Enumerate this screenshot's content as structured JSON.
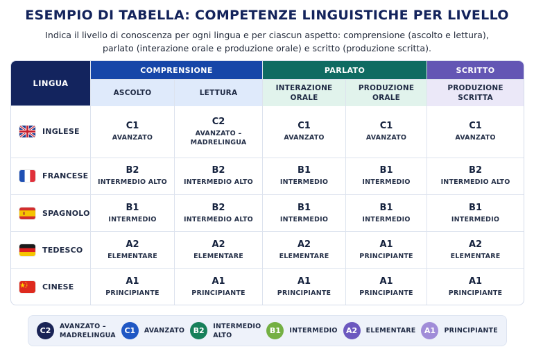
{
  "title": "ESEMPIO DI TABELLA: COMPETENZE LINGUISTICHE PER LIVELLO",
  "subtitle_line1": "Indica il livello di conoscenza per ogni lingua e per ciascun aspetto: comprensione (ascolto e lettura),",
  "subtitle_line2": "parlato (interazione orale e produzione orale) e scritto (produzione scritta).",
  "table": {
    "lingua_header": "LINGUA",
    "groups": {
      "comprensione": "COMPRENSIONE",
      "parlato": "PARLATO",
      "scritto": "SCRITTO"
    },
    "subheaders": {
      "ascolto": "ASCOLTO",
      "lettura": "LETTURA",
      "interazione_1": "INTERAZIONE",
      "interazione_2": "ORALE",
      "produzione_orale_1": "PRODUZIONE",
      "produzione_orale_2": "ORALE",
      "produzione_scritta_1": "PRODUZIONE",
      "produzione_scritta_2": "SCRITTA"
    },
    "rows": [
      {
        "language": "INGLESE",
        "flag": "uk-flag-icon",
        "cells": [
          {
            "level": "C1",
            "desc": "AVANZATO"
          },
          {
            "level": "C2",
            "desc": "AVANZATO –",
            "desc2": "MADRELINGUA"
          },
          {
            "level": "C1",
            "desc": "AVANZATO"
          },
          {
            "level": "C1",
            "desc": "AVANZATO"
          },
          {
            "level": "C1",
            "desc": "AVANZATO"
          }
        ]
      },
      {
        "language": "FRANCESE",
        "flag": "france-flag-icon",
        "cells": [
          {
            "level": "B2",
            "desc": "INTERMEDIO ALTO"
          },
          {
            "level": "B2",
            "desc": "INTERMEDIO ALTO"
          },
          {
            "level": "B1",
            "desc": "INTERMEDIO"
          },
          {
            "level": "B1",
            "desc": "INTERMEDIO"
          },
          {
            "level": "B2",
            "desc": "INTERMEDIO ALTO"
          }
        ]
      },
      {
        "language": "SPAGNOLO",
        "flag": "spain-flag-icon",
        "cells": [
          {
            "level": "B1",
            "desc": "INTERMEDIO"
          },
          {
            "level": "B2",
            "desc": "INTERMEDIO ALTO"
          },
          {
            "level": "B1",
            "desc": "INTERMEDIO"
          },
          {
            "level": "B1",
            "desc": "INTERMEDIO"
          },
          {
            "level": "B1",
            "desc": "INTERMEDIO"
          }
        ]
      },
      {
        "language": "TEDESCO",
        "flag": "germany-flag-icon",
        "cells": [
          {
            "level": "A2",
            "desc": "ELEMENTARE"
          },
          {
            "level": "A2",
            "desc": "ELEMENTARE"
          },
          {
            "level": "A2",
            "desc": "ELEMENTARE"
          },
          {
            "level": "A1",
            "desc": "PRINCIPIANTE"
          },
          {
            "level": "A2",
            "desc": "ELEMENTARE"
          }
        ]
      },
      {
        "language": "CINESE",
        "flag": "china-flag-icon",
        "cells": [
          {
            "level": "A1",
            "desc": "PRINCIPIANTE"
          },
          {
            "level": "A1",
            "desc": "PRINCIPIANTE"
          },
          {
            "level": "A1",
            "desc": "PRINCIPIANTE"
          },
          {
            "level": "A1",
            "desc": "PRINCIPIANTE"
          },
          {
            "level": "A1",
            "desc": "PRINCIPIANTE"
          }
        ]
      }
    ]
  },
  "colors": {
    "header_dark": "#13245e",
    "comprensione": "#1746a8",
    "parlato": "#0f6b62",
    "scritto": "#6356b4"
  },
  "legend": [
    {
      "badge": "C2",
      "label1": "AVANZATO –",
      "label2": "MADRELINGUA",
      "color": "#1a2456"
    },
    {
      "badge": "C1",
      "label1": "AVANZATO",
      "label2": "",
      "color": "#1f57c4"
    },
    {
      "badge": "B2",
      "label1": "INTERMEDIO",
      "label2": "ALTO",
      "color": "#17805a"
    },
    {
      "badge": "B1",
      "label1": "INTERMEDIO",
      "label2": "",
      "color": "#74b043"
    },
    {
      "badge": "A2",
      "label1": "ELEMENTARE",
      "label2": "",
      "color": "#6c58bf"
    },
    {
      "badge": "A1",
      "label1": "PRINCIPIANTE",
      "label2": "",
      "color": "#a08cd8"
    }
  ]
}
